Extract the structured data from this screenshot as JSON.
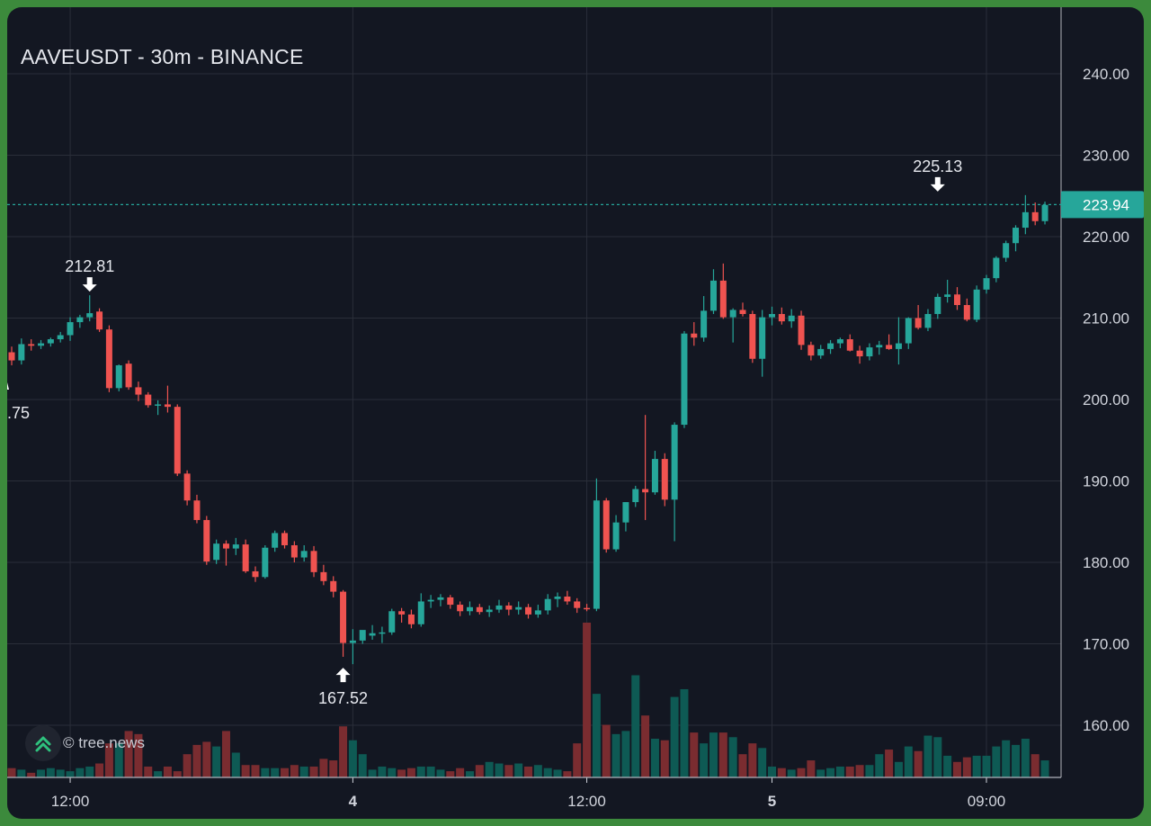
{
  "header": {
    "title": "AAVEUSDT - 30m - BINANCE"
  },
  "watermark": {
    "text": "© tree.news",
    "icon": "double-chevron-up-icon"
  },
  "colors": {
    "up": "#26a69a",
    "down": "#ef5350",
    "vol_up": "#0e5a54",
    "vol_down": "#7a2c30",
    "grid": "#2a2e39",
    "axis_text": "#d1d4dc",
    "price_tag": "#26a69a"
  },
  "chart_data": {
    "type": "candlestick",
    "title": "AAVEUSDT - 30m - BINANCE",
    "y_ticks": [
      "240.00",
      "230.00",
      "220.00",
      "210.00",
      "200.00",
      "190.00",
      "180.00",
      "170.00",
      "160.00"
    ],
    "x_ticks": [
      "12:00",
      "4",
      "12:00",
      "5",
      "09:00"
    ],
    "last_price": "223.94",
    "annotations": [
      {
        "text": "212.81",
        "type": "high"
      },
      {
        "text": "167.52",
        "type": "low"
      },
      {
        "text": "225.13",
        "type": "high"
      },
      {
        "text": ".75",
        "type": "low-partial"
      }
    ],
    "candles": [
      [
        205.8,
        206.5,
        204.2,
        204.8
      ],
      [
        204.8,
        207.5,
        204.3,
        206.8
      ],
      [
        206.8,
        207.4,
        206.0,
        206.6
      ],
      [
        206.6,
        207.3,
        206.2,
        206.9
      ],
      [
        206.9,
        207.6,
        206.5,
        207.4
      ],
      [
        207.4,
        208.3,
        207.0,
        207.9
      ],
      [
        207.9,
        210.1,
        207.2,
        209.5
      ],
      [
        209.5,
        210.4,
        208.8,
        210.1
      ],
      [
        210.1,
        212.8,
        209.6,
        210.6
      ],
      [
        210.8,
        211.2,
        208.3,
        208.6
      ],
      [
        208.6,
        209.1,
        200.9,
        201.4
      ],
      [
        201.4,
        204.3,
        201.0,
        204.2
      ],
      [
        204.4,
        204.8,
        201.2,
        201.5
      ],
      [
        201.5,
        202.2,
        199.8,
        200.6
      ],
      [
        200.6,
        200.9,
        199.0,
        199.3
      ],
      [
        199.3,
        199.9,
        198.1,
        199.4
      ],
      [
        199.4,
        201.7,
        198.4,
        199.1
      ],
      [
        199.1,
        199.4,
        190.6,
        190.9
      ],
      [
        190.9,
        191.3,
        187.0,
        187.6
      ],
      [
        187.6,
        188.3,
        184.8,
        185.2
      ],
      [
        185.2,
        185.7,
        179.7,
        180.1
      ],
      [
        180.3,
        182.8,
        179.8,
        182.3
      ],
      [
        182.3,
        182.7,
        179.6,
        181.7
      ],
      [
        181.7,
        183.0,
        180.9,
        182.2
      ],
      [
        182.2,
        182.8,
        178.7,
        178.9
      ],
      [
        178.9,
        179.5,
        177.6,
        178.2
      ],
      [
        178.2,
        182.1,
        178.0,
        181.8
      ],
      [
        181.8,
        183.9,
        181.3,
        183.6
      ],
      [
        183.6,
        183.9,
        181.7,
        182.1
      ],
      [
        182.1,
        182.6,
        180.0,
        180.6
      ],
      [
        180.6,
        182.1,
        180.1,
        181.4
      ],
      [
        181.4,
        182.0,
        178.2,
        178.8
      ],
      [
        178.8,
        179.7,
        177.2,
        177.7
      ],
      [
        177.7,
        178.3,
        175.7,
        176.4
      ],
      [
        176.4,
        176.6,
        168.4,
        170.1
      ],
      [
        170.1,
        171.8,
        167.5,
        170.4
      ],
      [
        170.4,
        171.3,
        170.0,
        171.7
      ],
      [
        171.0,
        172.3,
        170.5,
        171.3
      ],
      [
        171.3,
        172.1,
        170.1,
        171.4
      ],
      [
        171.4,
        174.3,
        171.1,
        174.0
      ],
      [
        174.0,
        174.4,
        172.6,
        173.6
      ],
      [
        173.6,
        174.2,
        171.9,
        172.4
      ],
      [
        172.4,
        176.2,
        172.1,
        175.2
      ],
      [
        175.2,
        176.0,
        174.4,
        175.4
      ],
      [
        175.4,
        176.1,
        174.6,
        175.7
      ],
      [
        175.7,
        176.0,
        174.3,
        174.8
      ],
      [
        174.8,
        175.2,
        173.4,
        174.0
      ],
      [
        174.0,
        175.2,
        173.5,
        174.5
      ],
      [
        174.5,
        174.9,
        173.6,
        173.9
      ],
      [
        173.9,
        174.7,
        173.3,
        174.2
      ],
      [
        174.2,
        175.4,
        173.8,
        174.7
      ],
      [
        174.7,
        175.1,
        173.5,
        174.2
      ],
      [
        174.2,
        175.2,
        173.6,
        174.5
      ],
      [
        174.5,
        174.9,
        173.1,
        173.6
      ],
      [
        173.6,
        174.8,
        173.2,
        174.1
      ],
      [
        174.1,
        176.1,
        173.6,
        175.5
      ],
      [
        175.5,
        176.3,
        174.5,
        175.8
      ],
      [
        175.8,
        176.5,
        174.8,
        175.2
      ],
      [
        175.2,
        175.6,
        173.8,
        174.4
      ],
      [
        174.4,
        174.9,
        174.0,
        174.3
      ],
      [
        174.3,
        190.3,
        174.0,
        187.6
      ],
      [
        187.6,
        187.9,
        181.2,
        181.6
      ],
      [
        181.6,
        185.8,
        181.3,
        184.9
      ],
      [
        184.9,
        187.4,
        183.8,
        187.4
      ],
      [
        187.4,
        189.4,
        186.8,
        189.0
      ],
      [
        189.0,
        198.1,
        185.2,
        188.6
      ],
      [
        188.6,
        193.7,
        188.3,
        192.7
      ],
      [
        192.7,
        193.4,
        186.9,
        187.7
      ],
      [
        187.7,
        197.2,
        182.6,
        196.9
      ],
      [
        196.9,
        208.4,
        196.5,
        208.1
      ],
      [
        208.1,
        209.5,
        206.6,
        207.6
      ],
      [
        207.6,
        212.7,
        207.1,
        210.9
      ],
      [
        210.9,
        216.0,
        210.5,
        214.6
      ],
      [
        214.6,
        216.7,
        209.9,
        210.1
      ],
      [
        210.1,
        211.2,
        207.0,
        211.0
      ],
      [
        211.0,
        211.9,
        210.2,
        210.5
      ],
      [
        210.5,
        210.9,
        204.5,
        205.0
      ],
      [
        205.0,
        211.0,
        202.8,
        210.1
      ],
      [
        210.1,
        211.4,
        209.1,
        210.5
      ],
      [
        210.5,
        211.3,
        209.2,
        209.6
      ],
      [
        209.6,
        211.1,
        208.8,
        210.3
      ],
      [
        210.3,
        210.9,
        206.1,
        206.7
      ],
      [
        206.7,
        207.1,
        204.8,
        205.4
      ],
      [
        205.4,
        206.7,
        205.0,
        206.2
      ],
      [
        206.2,
        207.3,
        205.6,
        206.9
      ],
      [
        206.9,
        207.6,
        206.3,
        207.4
      ],
      [
        207.4,
        208.0,
        205.9,
        206.0
      ],
      [
        206.0,
        206.6,
        204.4,
        205.3
      ],
      [
        205.3,
        206.9,
        204.8,
        206.4
      ],
      [
        206.4,
        207.2,
        205.5,
        206.7
      ],
      [
        206.7,
        208.0,
        206.1,
        206.2
      ],
      [
        206.2,
        210.1,
        204.3,
        206.9
      ],
      [
        206.9,
        210.1,
        206.2,
        210.0
      ],
      [
        210.0,
        211.6,
        208.6,
        208.8
      ],
      [
        208.8,
        211.1,
        208.4,
        210.5
      ],
      [
        210.5,
        213.0,
        209.9,
        212.6
      ],
      [
        212.6,
        214.7,
        211.9,
        212.9
      ],
      [
        212.9,
        213.8,
        211.0,
        211.6
      ],
      [
        211.6,
        212.4,
        209.6,
        209.8
      ],
      [
        209.8,
        214.0,
        209.5,
        213.5
      ],
      [
        213.5,
        215.3,
        213.0,
        214.9
      ],
      [
        214.9,
        217.6,
        214.4,
        217.4
      ],
      [
        217.4,
        219.5,
        216.9,
        219.2
      ],
      [
        219.2,
        221.4,
        218.2,
        221.1
      ],
      [
        221.1,
        225.1,
        220.3,
        223.0
      ],
      [
        223.0,
        224.2,
        221.4,
        221.9
      ],
      [
        221.9,
        224.3,
        221.5,
        223.9
      ]
    ],
    "volume": [
      0.06,
      0.05,
      0.03,
      0.05,
      0.06,
      0.05,
      0.04,
      0.06,
      0.07,
      0.09,
      0.22,
      0.22,
      0.3,
      0.28,
      0.07,
      0.04,
      0.07,
      0.04,
      0.15,
      0.21,
      0.23,
      0.2,
      0.3,
      0.16,
      0.08,
      0.08,
      0.06,
      0.06,
      0.06,
      0.08,
      0.07,
      0.07,
      0.12,
      0.11,
      0.33,
      0.24,
      0.15,
      0.05,
      0.07,
      0.06,
      0.05,
      0.06,
      0.07,
      0.07,
      0.05,
      0.04,
      0.06,
      0.04,
      0.08,
      0.1,
      0.09,
      0.08,
      0.09,
      0.07,
      0.08,
      0.06,
      0.05,
      0.04,
      0.22,
      1.0,
      0.54,
      0.34,
      0.28,
      0.3,
      0.66,
      0.4,
      0.25,
      0.24,
      0.52,
      0.57,
      0.29,
      0.22,
      0.29,
      0.29,
      0.26,
      0.15,
      0.22,
      0.19,
      0.07,
      0.06,
      0.05,
      0.06,
      0.11,
      0.05,
      0.06,
      0.07,
      0.07,
      0.08,
      0.08,
      0.15,
      0.18,
      0.1,
      0.2,
      0.17,
      0.27,
      0.26,
      0.14,
      0.1,
      0.13,
      0.14,
      0.14,
      0.2,
      0.24,
      0.21,
      0.25,
      0.15,
      0.11
    ]
  }
}
